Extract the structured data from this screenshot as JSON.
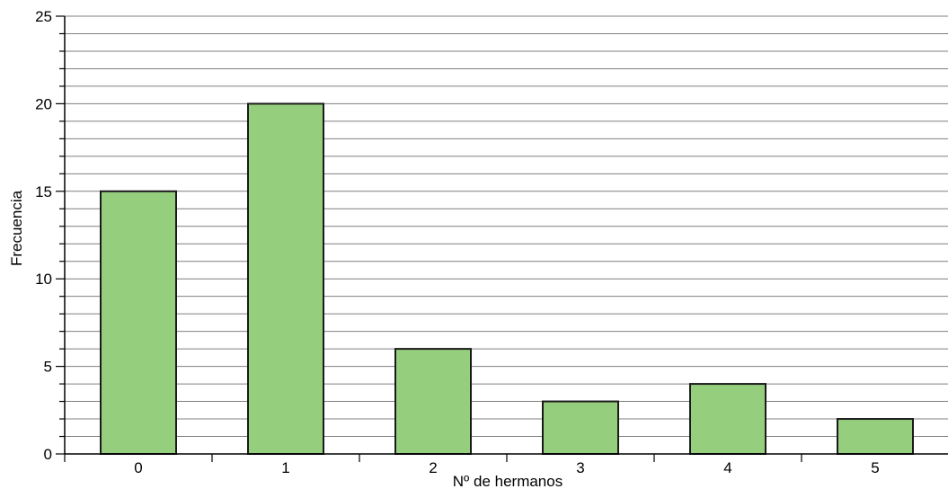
{
  "chart_data": {
    "type": "bar",
    "title": "",
    "xlabel": "Nº de hermanos",
    "ylabel": "Frecuencia",
    "categories": [
      "0",
      "1",
      "2",
      "3",
      "4",
      "5"
    ],
    "values": [
      15,
      20,
      6,
      3,
      4,
      2
    ],
    "ylim": [
      0,
      25
    ],
    "y_major_ticks": [
      0,
      5,
      10,
      15,
      20,
      25
    ],
    "y_minor_step": 1,
    "grid": true,
    "bar_color": "#95cf7d",
    "bar_edge_color": "#1a1a1a",
    "grid_color": "#7f7f7f"
  }
}
